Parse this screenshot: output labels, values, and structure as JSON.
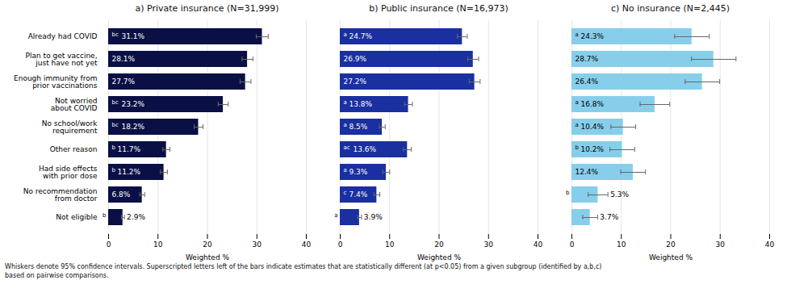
{
  "chart_data": [
    {
      "type": "bar",
      "orientation": "horizontal",
      "title": "a) Private insurance (N=31,999)",
      "categories": [
        "Already had COVID",
        "Plan to get vaccine,\njust have not yet",
        "Enough immunity from\nprior vaccinations",
        "Not worried\nabout COVID",
        "No school/work\nrequirement",
        "Other reason",
        "Had side effects\nwith prior dose",
        "No recommendation\nfrom doctor",
        "Not eligible"
      ],
      "values": [
        31.1,
        28.1,
        27.7,
        23.2,
        18.2,
        11.7,
        11.2,
        6.8,
        2.9
      ],
      "value_labels": [
        "31.1%",
        "28.1%",
        "27.7%",
        "23.2%",
        "18.2%",
        "11.7%",
        "11.2%",
        "6.8%",
        "2.9%"
      ],
      "errors": [
        1.2,
        1.1,
        1.1,
        1.0,
        0.9,
        0.7,
        0.7,
        0.5,
        0.3
      ],
      "superscripts": [
        "bc",
        null,
        null,
        "bc",
        "bc",
        "b",
        "b",
        null,
        "b"
      ],
      "color": "#0a1045",
      "xlabel": "Weighted %",
      "xlim": [
        0,
        40
      ],
      "xticks": [
        0,
        10,
        20,
        30,
        40
      ],
      "grid": true,
      "data_labels": true
    },
    {
      "type": "bar",
      "orientation": "horizontal",
      "title": "b) Public insurance (N=16,973)",
      "categories": [
        "Already had COVID",
        "Plan to get vaccine,\njust have not yet",
        "Enough immunity from\nprior vaccinations",
        "Not worried\nabout COVID",
        "No school/work\nrequirement",
        "Other reason",
        "Had side effects\nwith prior dose",
        "No recommendation\nfrom doctor",
        "Not eligible"
      ],
      "values": [
        24.7,
        26.9,
        27.2,
        13.8,
        8.5,
        13.6,
        9.3,
        7.4,
        3.9
      ],
      "value_labels": [
        "24.7%",
        "26.9%",
        "27.2%",
        "13.8%",
        "8.5%",
        "13.6%",
        "9.3%",
        "7.4%",
        "3.9%"
      ],
      "errors": [
        1.0,
        1.1,
        1.1,
        0.8,
        0.6,
        0.8,
        0.7,
        0.6,
        0.4
      ],
      "superscripts": [
        "a",
        null,
        null,
        "a",
        "a",
        "ac",
        "a",
        "c",
        "a"
      ],
      "color": "#1a2fa0",
      "xlabel": "Weighted %",
      "xlim": [
        0,
        40
      ],
      "xticks": [
        0,
        10,
        20,
        30,
        40
      ],
      "grid": true,
      "data_labels": true,
      "tick_labels": "x"
    },
    {
      "type": "bar",
      "orientation": "horizontal",
      "title": "c) No insurance (N=2,445)",
      "categories": [
        "Already had COVID",
        "Plan to get vaccine,\njust have not yet",
        "Enough immunity from\nprior vaccinations",
        "Not worried\nabout COVID",
        "No school/work\nrequirement",
        "Other reason",
        "Had side effects\nwith prior dose",
        "No recommendation\nfrom doctor",
        "Not eligible"
      ],
      "values": [
        24.3,
        28.7,
        26.4,
        16.8,
        10.4,
        10.2,
        12.4,
        5.3,
        3.7
      ],
      "value_labels": [
        "24.3%",
        "28.7%",
        "26.4%",
        "16.8%",
        "10.4%",
        "10.2%",
        "12.4%",
        "5.3%",
        "3.7%"
      ],
      "errors": [
        3.5,
        4.5,
        3.5,
        3.0,
        2.5,
        2.5,
        2.5,
        2.0,
        1.5
      ],
      "superscripts": [
        "a",
        null,
        null,
        "a",
        "a",
        "b",
        null,
        "b",
        null
      ],
      "color": "#87ceeb",
      "xlabel": "Weighted %",
      "xlim": [
        0,
        40
      ],
      "xticks": [
        0,
        10,
        20,
        30,
        40
      ],
      "grid": true,
      "data_labels": true,
      "tick_labels": "x"
    }
  ],
  "footnote": "Whiskers denote 95% confidence intervals. Superscripted letters left of the bars indicate estimates that are statistically different (at p<0.05) from a given subgroup (identified by a,b,c)\nbased on pairwise comparisons."
}
